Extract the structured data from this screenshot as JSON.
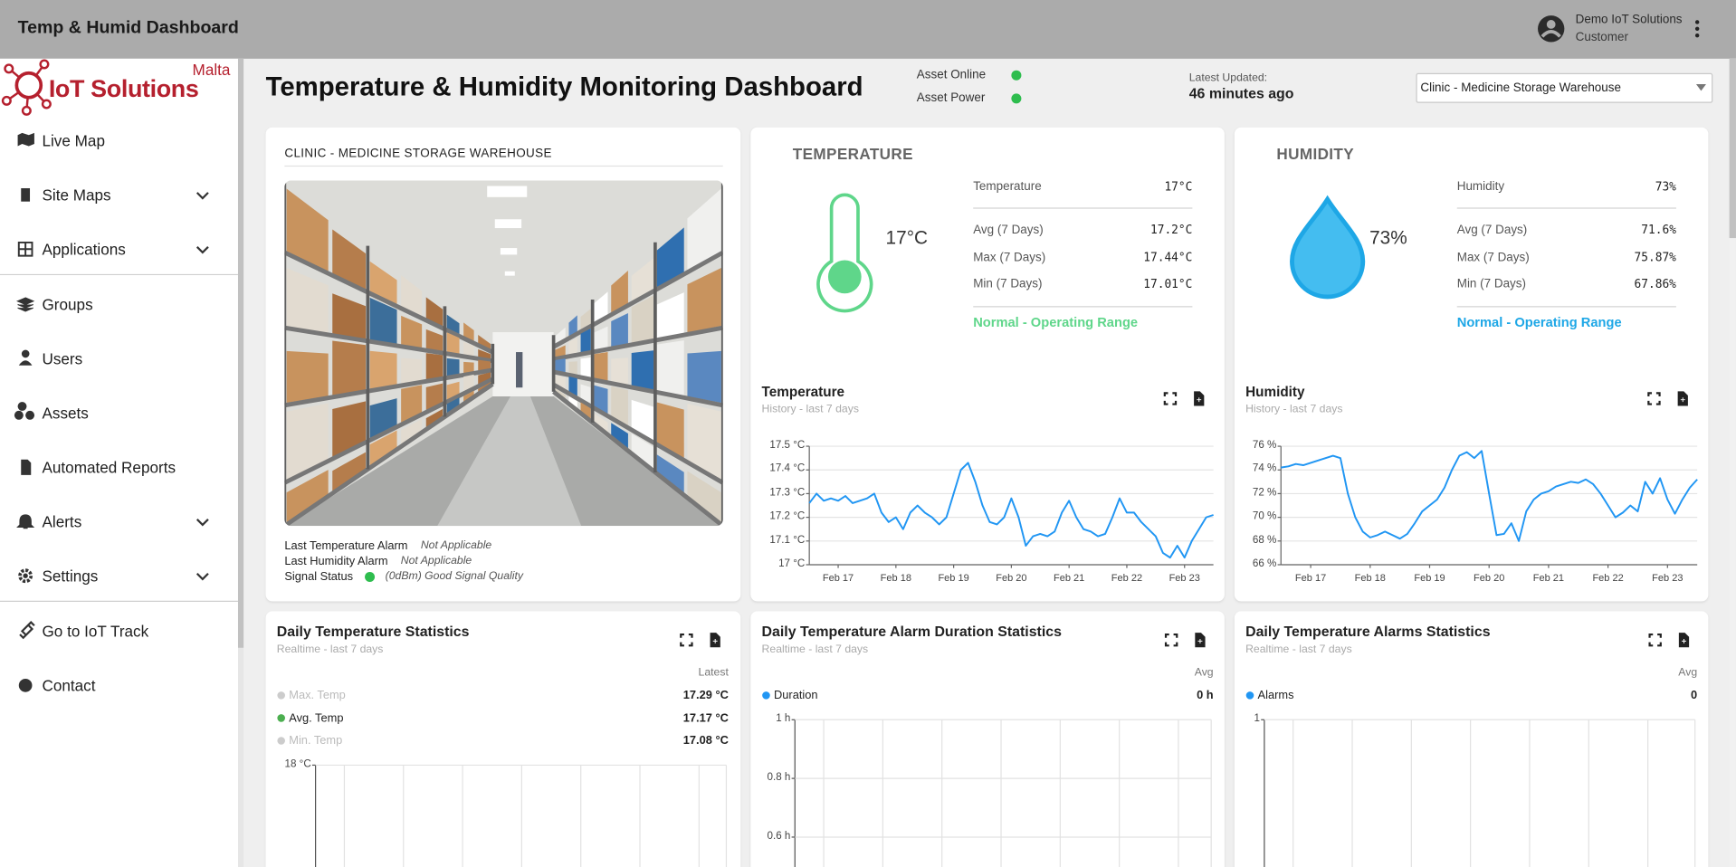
{
  "header": {
    "title": "Temp & Humid Dashboard",
    "user_name": "Demo IoT Solutions",
    "user_role": "Customer"
  },
  "sidebar": {
    "brand": "IoT Solutions",
    "brand_region": "Malta",
    "menu": [
      [
        {
          "label": "Live Map"
        },
        {
          "label": "Site Maps",
          "expandable": true
        },
        {
          "label": "Applications",
          "expandable": true
        }
      ],
      [
        {
          "label": "Groups"
        },
        {
          "label": "Users"
        },
        {
          "label": "Assets"
        },
        {
          "label": "Automated Reports"
        },
        {
          "label": "Alerts",
          "expandable": true
        },
        {
          "label": "Settings",
          "expandable": true
        }
      ],
      [
        {
          "label": "Go to IoT Track"
        },
        {
          "label": "Contact"
        }
      ]
    ]
  },
  "dashboard": {
    "title": "Temperature & Humidity Monitoring Dashboard",
    "status": [
      {
        "label": "Asset Online",
        "color": "#2ebd4e"
      },
      {
        "label": "Asset Power",
        "color": "#2ebd4e"
      }
    ],
    "updated_label": "Latest Updated:",
    "updated": "46 minutes ago",
    "site": "Clinic - Medicine Storage Warehouse"
  },
  "site_card": {
    "title": "CLINIC - MEDICINE STORAGE WAREHOUSE",
    "rows": [
      {
        "label": "Last Temperature Alarm",
        "value": "Not Applicable"
      },
      {
        "label": "Last Humidity Alarm",
        "value": "Not Applicable"
      },
      {
        "label": "Signal Status",
        "value": "(0dBm) Good Signal Quality",
        "status_color": "#2ebd4e"
      }
    ]
  },
  "readings": [
    {
      "title": "TEMPERATURE",
      "reading": "17°C",
      "color": "#5fd68a",
      "status": "Normal - Operating Range",
      "stats": [
        {
          "label": "Temperature",
          "value": "17°C"
        },
        {
          "label": "Avg (7 Days)",
          "value": "17.2°C"
        },
        {
          "label": "Max (7 Days)",
          "value": "17.44°C"
        },
        {
          "label": "Min (7 Days)",
          "value": "17.01°C"
        }
      ]
    },
    {
      "title": "HUMIDITY",
      "reading": "73%",
      "color": "#1ea7e6",
      "status": "Normal - Operating Range",
      "stats": [
        {
          "label": "Humidity",
          "value": "73%"
        },
        {
          "label": "Avg (7 Days)",
          "value": "71.6%"
        },
        {
          "label": "Max (7 Days)",
          "value": "75.87%"
        },
        {
          "label": "Min (7 Days)",
          "value": "67.86%"
        }
      ]
    }
  ],
  "history": [
    {
      "type": "line",
      "title": "Temperature",
      "subtitle": "History - last 7 days",
      "color": "#2196f3",
      "values": [
        17.26,
        17.3,
        17.27,
        17.28,
        17.27,
        17.29,
        17.26,
        17.27,
        17.28,
        17.3,
        17.22,
        17.18,
        17.2,
        17.15,
        17.22,
        17.25,
        17.22,
        17.2,
        17.17,
        17.2,
        17.3,
        17.4,
        17.43,
        17.35,
        17.25,
        17.18,
        17.17,
        17.2,
        17.28,
        17.2,
        17.08,
        17.12,
        17.13,
        17.12,
        17.14,
        17.22,
        17.27,
        17.2,
        17.15,
        17.14,
        17.12,
        17.13,
        17.2,
        17.28,
        17.22,
        17.22,
        17.18,
        17.15,
        17.12,
        17.05,
        17.03,
        17.08,
        17.03,
        17.1,
        17.15,
        17.2,
        17.21
      ],
      "xlim": [
        0,
        56
      ],
      "xticks": [
        {
          "value": 4,
          "label": "Feb 17"
        },
        {
          "value": 12,
          "label": "Feb 18"
        },
        {
          "value": 20,
          "label": "Feb 19"
        },
        {
          "value": 28,
          "label": "Feb 20"
        },
        {
          "value": 36,
          "label": "Feb 21"
        },
        {
          "value": 44,
          "label": "Feb 22"
        },
        {
          "value": 52,
          "label": "Feb 23"
        }
      ],
      "ylim": [
        17.0,
        17.5
      ],
      "yticks": [
        {
          "value": 17,
          "label": "17 °C"
        },
        {
          "value": 17.1,
          "label": "17.1 °C"
        },
        {
          "value": 17.2,
          "label": "17.2 °C"
        },
        {
          "value": 17.3,
          "label": "17.3 °C"
        },
        {
          "value": 17.4,
          "label": "17.4 °C"
        },
        {
          "value": 17.5,
          "label": "17.5 °C"
        }
      ],
      "grid": true
    },
    {
      "type": "line",
      "title": "Humidity",
      "subtitle": "History - last 7 days",
      "color": "#2196f3",
      "values": [
        74.2,
        74.3,
        74.5,
        74.4,
        74.6,
        74.8,
        75.0,
        75.2,
        75.0,
        72.0,
        70.0,
        68.8,
        68.3,
        68.5,
        68.8,
        68.5,
        68.2,
        68.6,
        69.5,
        70.5,
        71.0,
        71.5,
        72.5,
        74.0,
        75.2,
        75.5,
        75.0,
        75.6,
        72.0,
        68.5,
        68.6,
        69.5,
        68.0,
        70.5,
        71.5,
        72.0,
        72.2,
        72.6,
        72.8,
        73.0,
        72.9,
        73.2,
        72.8,
        72.0,
        71.0,
        70.0,
        70.4,
        71.0,
        70.5,
        73.0,
        72.0,
        73.3,
        71.5,
        70.3,
        71.5,
        72.5,
        73.2
      ],
      "xlim": [
        0,
        56
      ],
      "xticks": [
        {
          "value": 4,
          "label": "Feb 17"
        },
        {
          "value": 12,
          "label": "Feb 18"
        },
        {
          "value": 20,
          "label": "Feb 19"
        },
        {
          "value": 28,
          "label": "Feb 20"
        },
        {
          "value": 36,
          "label": "Feb 21"
        },
        {
          "value": 44,
          "label": "Feb 22"
        },
        {
          "value": 52,
          "label": "Feb 23"
        }
      ],
      "ylim": [
        66,
        76
      ],
      "yticks": [
        {
          "value": 66,
          "label": "66 %"
        },
        {
          "value": 68,
          "label": "68 %"
        },
        {
          "value": 70,
          "label": "70 %"
        },
        {
          "value": 72,
          "label": "72 %"
        },
        {
          "value": 74,
          "label": "74 %"
        },
        {
          "value": 76,
          "label": "76 %"
        }
      ],
      "grid": true
    }
  ],
  "statistics": [
    {
      "title": "Daily Temperature Statistics",
      "subtitle": "Realtime - last 7 days",
      "column_header": "Latest",
      "legend": [
        {
          "name": "Max. Temp",
          "value": "17.29 °C",
          "color": "#cccccc",
          "hidden": true
        },
        {
          "name": "Avg. Temp",
          "value": "17.17 °C",
          "color": "#4caf50"
        },
        {
          "name": "Min. Temp",
          "value": "17.08 °C",
          "color": "#cccccc",
          "hidden": true
        }
      ],
      "yticks": [
        {
          "value": 18,
          "label": "18 °C"
        }
      ]
    },
    {
      "title": "Daily Temperature Alarm Duration Statistics",
      "subtitle": "Realtime - last 7 days",
      "column_header": "Avg",
      "legend": [
        {
          "name": "Duration",
          "value": "0 h",
          "color": "#2196f3"
        }
      ],
      "ylim": [
        0,
        1
      ],
      "yticks": [
        {
          "value": 1,
          "label": "1 h"
        },
        {
          "value": 0.8,
          "label": "0.8 h"
        },
        {
          "value": 0.6,
          "label": "0.6 h"
        }
      ]
    },
    {
      "title": "Daily Temperature Alarms Statistics",
      "subtitle": "Realtime - last 7 days",
      "column_header": "Avg",
      "legend": [
        {
          "name": "Alarms",
          "value": "0",
          "color": "#2196f3"
        }
      ],
      "yticks": [
        1
      ]
    }
  ]
}
